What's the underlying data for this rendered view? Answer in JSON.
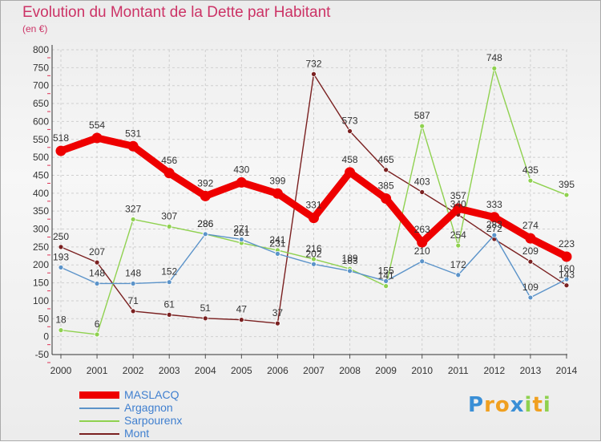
{
  "page": {
    "title": "Evolution du Montant de la Dette par Habitant",
    "subtitle": "(en €)",
    "logo": "Proxiti"
  },
  "chart_data": {
    "type": "line",
    "title": "Evolution du Montant de la Dette par Habitant",
    "ylabel": "(en €)",
    "xlabel": "",
    "ylim": [
      -50,
      800
    ],
    "ytick_step": 50,
    "grid": true,
    "legend_position": "bottom-left",
    "categories": [
      "2000",
      "2001",
      "2002",
      "2003",
      "2004",
      "2005",
      "2006",
      "2007",
      "2008",
      "2009",
      "2010",
      "2011",
      "2012",
      "2013",
      "2014"
    ],
    "series": [
      {
        "name": "MASLACQ",
        "color": "#ee0000",
        "values": [
          518,
          554,
          531,
          456,
          392,
          430,
          399,
          331,
          458,
          385,
          263,
          357,
          333,
          274,
          223
        ]
      },
      {
        "name": "Argagnon",
        "color": "#5b93c9",
        "values": [
          193,
          148,
          148,
          152,
          286,
          271,
          231,
          202,
          183,
          155,
          210,
          172,
          283,
          109,
          160
        ]
      },
      {
        "name": "Sarpourenx",
        "color": "#8fd14f",
        "values": [
          18,
          6,
          327,
          307,
          286,
          261,
          241,
          216,
          189,
          141,
          587,
          254,
          748,
          435,
          395
        ]
      },
      {
        "name": "Mont",
        "color": "#7a2020",
        "values": [
          250,
          207,
          71,
          61,
          51,
          47,
          37,
          732,
          573,
          465,
          403,
          340,
          272,
          209,
          143
        ]
      }
    ]
  }
}
